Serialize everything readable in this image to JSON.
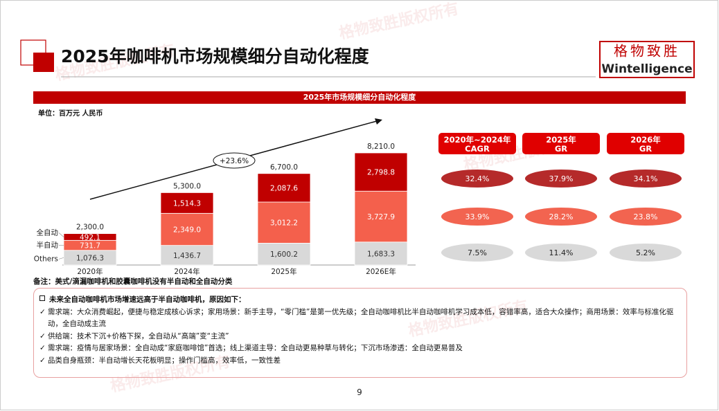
{
  "header": {
    "title": "2025年咖啡机市场规模细分自动化程度",
    "logo_cn": "格物致胜",
    "logo_en": "Wintelligence",
    "watermark": "格物致胜版权所有"
  },
  "chart_data": {
    "type": "stacked-bar",
    "title": "2025年市场规模细分自动化程度",
    "unit": "单位：百万元 人民币",
    "categories": [
      "2020年",
      "2024年",
      "2025年",
      "2026E年"
    ],
    "series": [
      {
        "name": "Others",
        "color": "#d9d9d9",
        "values": [
          1076.3,
          1436.7,
          1600.2,
          1683.3
        ],
        "value_labels": [
          "1,076.3",
          "1,436.7",
          "1,600.2",
          "1,683.3"
        ]
      },
      {
        "name": "半自动",
        "color": "#f4604c",
        "values": [
          731.7,
          2349.0,
          3012.2,
          3727.9
        ],
        "value_labels": [
          "731.7",
          "2,349.0",
          "3,012.2",
          "3,727.9"
        ]
      },
      {
        "name": "全自动",
        "color": "#c00000",
        "values": [
          492.1,
          1514.3,
          2087.6,
          2798.8
        ],
        "value_labels": [
          "492.1",
          "1,514.3",
          "2,087.6",
          "2,798.8"
        ]
      }
    ],
    "totals": [
      2300.0,
      5300.0,
      6700.0,
      8210.0
    ],
    "total_labels": [
      "2,300.0",
      "5,300.0",
      "6,700.0",
      "8,210.0"
    ],
    "annotation": "+23.6%"
  },
  "growth_table": {
    "headers": [
      "2020年~2024年 CAGR",
      "2025年 GR",
      "2026年 GR"
    ],
    "rows": [
      [
        "32.4%",
        "37.9%",
        "34.1%"
      ],
      [
        "33.9%",
        "28.2%",
        "23.8%"
      ],
      [
        "7.5%",
        "11.4%",
        "5.2%"
      ]
    ]
  },
  "note": "备注：美式/滴漏咖啡机和胶囊咖啡机没有半自动和全自动分类",
  "notes": {
    "heading": "未来全自动咖啡机市场增速远高于半自动咖啡机，原因如下：",
    "items": [
      "需求端：大众消费崛起，便捷与稳定成核心诉求；家用场景：新手主导，“零门槛”是第一优先级；全自动咖啡机比半自动咖啡机学习成本低，容错率高，适合大众操作；商用场景：效率与标准化驱动，全自动成主流",
      "供给端：技术下沉+价格下探，全自动从“高端”变“主流”",
      "需求端：疫情与居家场景：全自动成“家庭咖啡馆”首选；线上渠道主导：全自动更易种草与转化；下沉市场渗透：全自动更易普及",
      "品类自身瓶颈：半自动增长天花板明显；操作门槛高，效率低，一致性差"
    ]
  },
  "page_number": "9"
}
